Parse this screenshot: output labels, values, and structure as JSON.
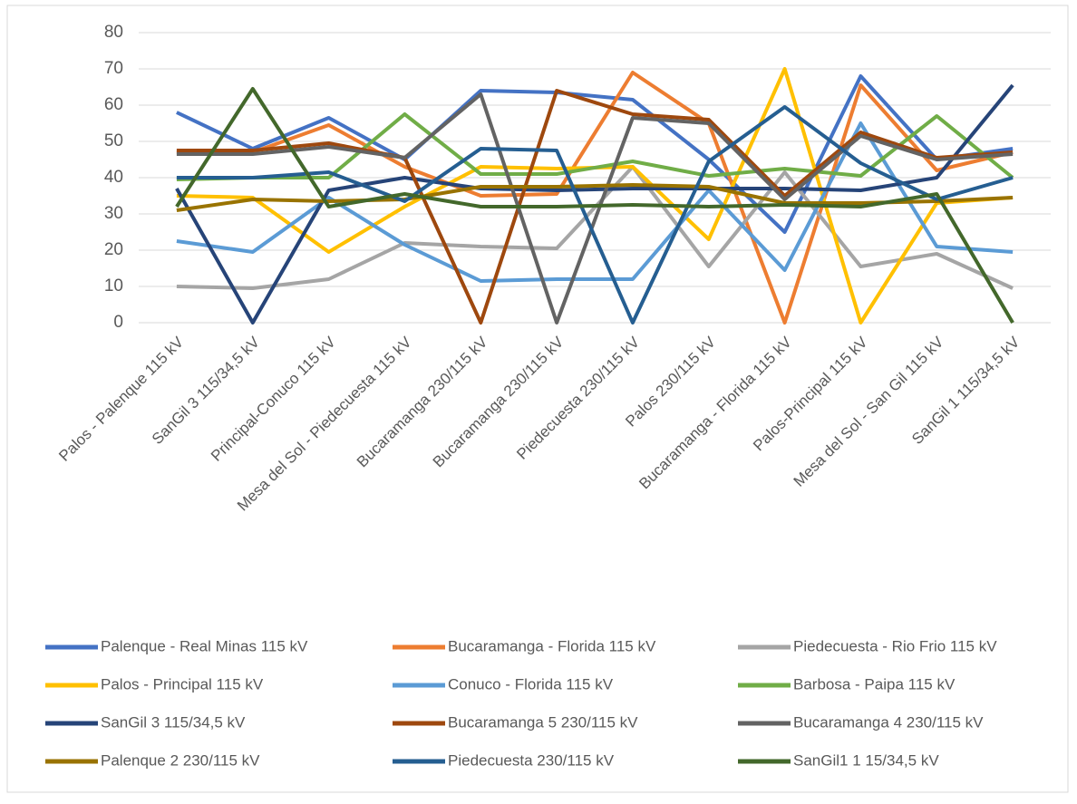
{
  "chart_data": {
    "type": "line",
    "categories": [
      "Palos - Palenque 115 kV",
      "SanGil 3 115/34,5 kV",
      "Principal-Conuco 115 kV",
      "Mesa del Sol - Piedecuesta 115 kV",
      "Bucaramanga 230/115 kV",
      "Bucaramanga 230/115 kV",
      "Piedecuesta 230/115 kV",
      "Palos 230/115 kV",
      "Bucaramanga - Florida 115 kV",
      "Palos-Principal 115 kV",
      "Mesa del Sol - San Gil 115 kV",
      "SanGil 1 115/34,5 kV"
    ],
    "series": [
      {
        "name": "Palenque - Real Minas 115 kV",
        "color": "#4472c4",
        "values": [
          58,
          48,
          56.5,
          45,
          64,
          63.5,
          61.5,
          45,
          25,
          68,
          45,
          48
        ]
      },
      {
        "name": "Bucaramanga - Florida 115 kV",
        "color": "#ed7d31",
        "values": [
          47,
          47,
          54.5,
          43,
          35,
          35.5,
          69,
          55,
          0,
          65.5,
          42,
          47
        ]
      },
      {
        "name": "Piedecuesta - Rio Frio 115 kV",
        "color": "#a5a5a5",
        "values": [
          10,
          9.5,
          12,
          22,
          21,
          20.5,
          43,
          15.5,
          41.5,
          15.5,
          19,
          9.5
        ]
      },
      {
        "name": "Palos - Principal 115 kV",
        "color": "#ffc000",
        "values": [
          35,
          34.5,
          19.5,
          32,
          43,
          42.5,
          43,
          23,
          70,
          0,
          33,
          34.5
        ]
      },
      {
        "name": "Conuco - Florida 115 kV",
        "color": "#5b9bd5",
        "values": [
          22.5,
          19.5,
          34.5,
          21.5,
          11.5,
          12,
          12,
          36.5,
          14.5,
          55,
          21,
          19.5
        ]
      },
      {
        "name": "Barbosa - Paipa 115 kV",
        "color": "#70ad47",
        "values": [
          39.5,
          40,
          40,
          57.5,
          41,
          41,
          44.5,
          40.5,
          42.5,
          40.5,
          57,
          40
        ]
      },
      {
        "name": "SanGil 3 115/34,5 kV",
        "color": "#264478",
        "values": [
          37,
          0,
          36.5,
          40,
          37,
          36.5,
          37,
          37,
          37,
          36.5,
          40,
          65.5
        ]
      },
      {
        "name": "Bucaramanga 5 230/115 kV",
        "color": "#9e480e",
        "values": [
          47.5,
          47.5,
          49.5,
          45.5,
          0,
          64,
          57.5,
          56,
          35,
          52.5,
          45.5,
          47
        ]
      },
      {
        "name": "Bucaramanga 4 230/115 kV",
        "color": "#636363",
        "values": [
          46.5,
          46.5,
          48.5,
          45.5,
          63,
          0,
          56.5,
          55,
          34,
          51.5,
          45,
          46.5
        ]
      },
      {
        "name": "Palenque 2 230/115 kV",
        "color": "#997300",
        "values": [
          31,
          34,
          33.5,
          34,
          37.5,
          37.5,
          38,
          37.5,
          33,
          33,
          33.5,
          34.5
        ]
      },
      {
        "name": "Piedecuesta 230/115 kV",
        "color": "#255e91",
        "values": [
          40,
          40,
          41.5,
          33.5,
          48,
          47.5,
          0,
          44.5,
          59.5,
          44,
          34,
          40
        ]
      },
      {
        "name": "SanGil1 1 15/34,5 kV",
        "color": "#43682b",
        "values": [
          32,
          64.5,
          32,
          35.5,
          32,
          32,
          32.5,
          32,
          32.5,
          32,
          35.5,
          0
        ]
      }
    ],
    "ylim": [
      0,
      80
    ],
    "yticks": [
      0,
      10,
      20,
      30,
      40,
      50,
      60,
      70,
      80
    ],
    "grid": true,
    "legend": "bottom"
  }
}
